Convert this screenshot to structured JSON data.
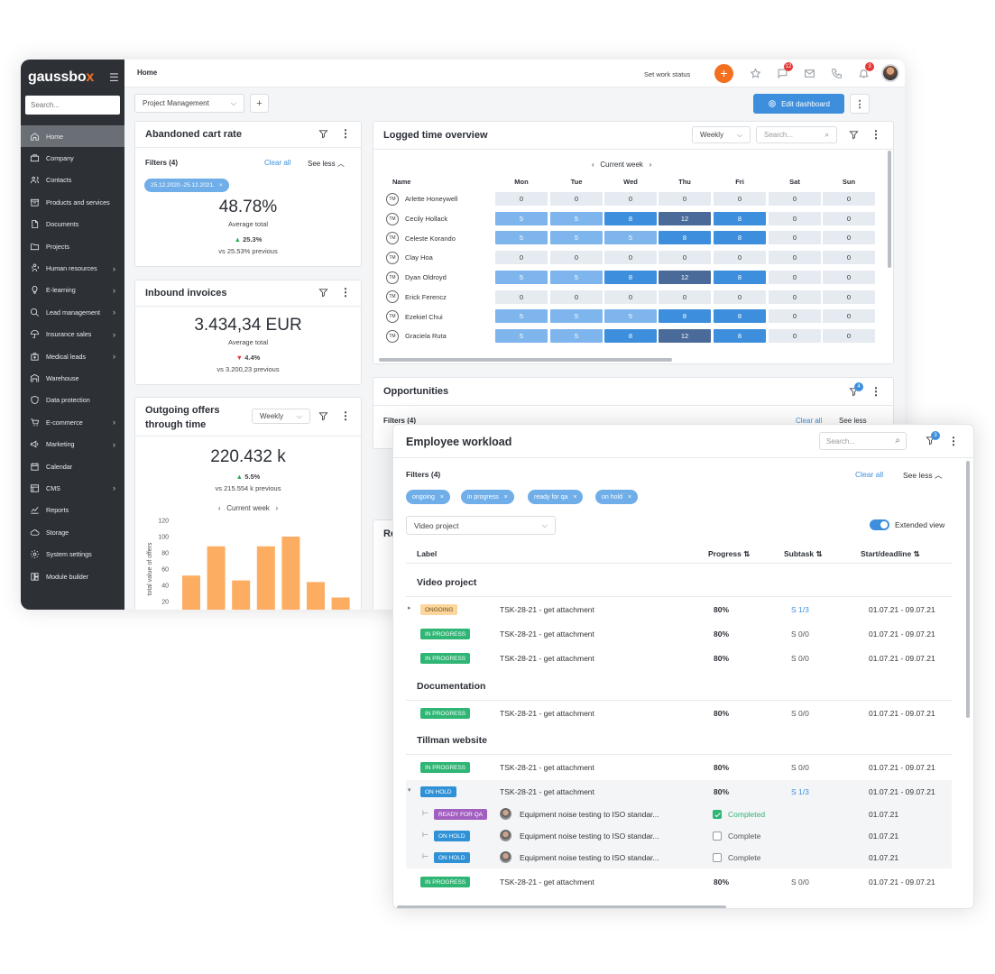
{
  "sidebar": {
    "logo_main": "gaussbo",
    "logo_accent": "x",
    "search_placeholder": "Search...",
    "items": [
      {
        "label": "Home",
        "icon": "home-icon",
        "active": true,
        "chevron": false
      },
      {
        "label": "Company",
        "icon": "briefcase-icon",
        "chevron": false
      },
      {
        "label": "Contacts",
        "icon": "contacts-icon",
        "chevron": false
      },
      {
        "label": "Products and services",
        "icon": "box-icon",
        "chevron": false
      },
      {
        "label": "Documents",
        "icon": "document-icon",
        "chevron": false
      },
      {
        "label": "Projects",
        "icon": "folder-icon",
        "chevron": false
      },
      {
        "label": "Human resources",
        "icon": "people-icon",
        "chevron": true
      },
      {
        "label": "E-learning",
        "icon": "bulb-icon",
        "chevron": true
      },
      {
        "label": "Lead management",
        "icon": "search-people-icon",
        "chevron": true
      },
      {
        "label": "Insurance sales",
        "icon": "umbrella-icon",
        "chevron": true
      },
      {
        "label": "Medical leads",
        "icon": "medical-icon",
        "chevron": true
      },
      {
        "label": "Warehouse",
        "icon": "warehouse-icon",
        "chevron": false
      },
      {
        "label": "Data protection",
        "icon": "shield-icon",
        "chevron": false
      },
      {
        "label": "E-commerce",
        "icon": "cart-icon",
        "chevron": true
      },
      {
        "label": "Marketing",
        "icon": "megaphone-icon",
        "chevron": true
      },
      {
        "label": "Calendar",
        "icon": "calendar-icon",
        "chevron": false
      },
      {
        "label": "CMS",
        "icon": "cms-icon",
        "chevron": true
      },
      {
        "label": "Reports",
        "icon": "chart-line-icon",
        "chevron": false
      },
      {
        "label": "Storage",
        "icon": "cloud-icon",
        "chevron": false
      },
      {
        "label": "System settings",
        "icon": "gear-icon",
        "chevron": false
      },
      {
        "label": "Module builder",
        "icon": "module-icon",
        "chevron": false
      }
    ]
  },
  "topbar": {
    "breadcrumb": "Home",
    "work_status": "Set work status",
    "plus": "+",
    "chat_badge": "12",
    "bell_badge": "3"
  },
  "toolbar": {
    "dashboard_select": "Project Management",
    "add": "+",
    "edit_dashboard": "Edit dashboard"
  },
  "abandoned": {
    "title": "Abandoned cart rate",
    "filters": "Filters (4)",
    "clear_all": "Clear all",
    "see_less": "See less",
    "chip": "25.12.2020.-25.12.2021.",
    "value": "48.78%",
    "caption": "Average total",
    "change": "25.3%",
    "previous": "vs 25.53% previous"
  },
  "inbound": {
    "title": "Inbound invoices",
    "value": "3.434,34 EUR",
    "caption": "Average total",
    "change": "4.4%",
    "previous": "vs 3.200,23 previous"
  },
  "outgoing": {
    "title_line1": "Outgoing offers",
    "title_line2": "through time",
    "period": "Weekly",
    "value": "220.432 k",
    "change": "5.5%",
    "previous": "vs 215.554 k previous",
    "week": "Current week"
  },
  "chart_data": {
    "type": "bar",
    "title": "",
    "ylabel": "total value of offers",
    "ylim": [
      20,
      120
    ],
    "yticks": [
      "120",
      "100",
      "80",
      "60",
      "40",
      "20"
    ],
    "values": [
      52,
      88,
      46,
      88,
      100,
      44,
      25
    ],
    "color": "#fdad62"
  },
  "logged": {
    "title": "Logged time overview",
    "period": "Weekly",
    "search_placeholder": "Search...",
    "week": "Current week",
    "name_header": "Name",
    "days": [
      "Mon",
      "Tue",
      "Wed",
      "Thu",
      "Fri",
      "Sat",
      "Sun"
    ],
    "rows": [
      {
        "initials": "TM",
        "name": "Arlette Honeywell",
        "values": [
          "0",
          "0",
          "0",
          "0",
          "0",
          "0",
          "0"
        ]
      },
      {
        "initials": "TM",
        "name": "Cecily Hollack",
        "values": [
          "5",
          "5",
          "8",
          "12",
          "8",
          "0",
          "0"
        ]
      },
      {
        "initials": "TM",
        "name": "Celeste Korando",
        "values": [
          "5",
          "5",
          "5",
          "8",
          "8",
          "0",
          "0"
        ]
      },
      {
        "initials": "TM",
        "name": "Clay Hoa",
        "values": [
          "0",
          "0",
          "0",
          "0",
          "0",
          "0",
          "0"
        ]
      },
      {
        "initials": "TM",
        "name": "Dyan Oldroyd",
        "values": [
          "5",
          "5",
          "8",
          "12",
          "8",
          "0",
          "0"
        ]
      },
      {
        "initials": "TM",
        "name": "Erick Ferencz",
        "values": [
          "0",
          "0",
          "0",
          "0",
          "0",
          "0",
          "0"
        ]
      },
      {
        "initials": "TM",
        "name": "Ezekiel Chui",
        "values": [
          "5",
          "5",
          "5",
          "8",
          "8",
          "0",
          "0"
        ]
      },
      {
        "initials": "TM",
        "name": "Graciela Ruta",
        "values": [
          "5",
          "5",
          "8",
          "12",
          "8",
          "0",
          "0"
        ]
      }
    ]
  },
  "opportunities": {
    "title": "Opportunities",
    "filter_badge": "4",
    "filters": "Filters (4)",
    "clear_all": "Clear all",
    "see_less": "See less"
  },
  "hidden_card": {
    "title": "Re"
  },
  "workload": {
    "title": "Employee workload",
    "search_placeholder": "Search...",
    "filter_badge": "3",
    "filters": "Filters (4)",
    "clear_all": "Clear all",
    "see_less": "See less",
    "chips": [
      "ongoing",
      "in progress",
      "ready for qa",
      "on hold"
    ],
    "project_select": "Video project",
    "extended_view": "Extended view",
    "columns": {
      "label": "Label",
      "progress": "Progress",
      "subtask": "Subtask",
      "dates": "Start/deadline"
    },
    "groups": [
      "Video project",
      "Documentation",
      "Tillman website"
    ],
    "rows": [
      {
        "status": "ONGOING",
        "task": "TSK-28-21 - get attachment",
        "progress": "80%",
        "subtask": "S 1/3",
        "dates": "01.07.21 - 09.07.21"
      },
      {
        "status": "IN PROGRESS",
        "task": "TSK-28-21 - get attachment",
        "progress": "80%",
        "subtask": "S 0/0",
        "dates": "01.07.21 - 09.07.21"
      },
      {
        "status": "IN PROGRESS",
        "task": "TSK-28-21 - get attachment",
        "progress": "80%",
        "subtask": "S 0/0",
        "dates": "01.07.21 - 09.07.21"
      },
      {
        "status": "IN PROGRESS",
        "task": "TSK-28-21 - get attachment",
        "progress": "80%",
        "subtask": "S 0/0",
        "dates": "01.07.21 - 09.07.21"
      },
      {
        "status": "IN PROGRESS",
        "task": "TSK-28-21 - get attachment",
        "progress": "80%",
        "subtask": "S 0/0",
        "dates": "01.07.21 - 09.07.21"
      },
      {
        "status": "ON HOLD",
        "task": "TSK-28-21 - get attachment",
        "progress": "80%",
        "subtask": "S 1/3",
        "dates": "01.07.21 - 09.07.21"
      },
      {
        "status": "IN PROGRESS",
        "task": "TSK-28-21 - get attachment",
        "progress": "80%",
        "subtask": "S 0/0",
        "dates": "01.07.21 - 09.07.21"
      }
    ],
    "subrows": [
      {
        "status": "READY FOR QA",
        "task": "Equipment noise testing to ISO standar...",
        "check": "Completed",
        "date": "01.07.21"
      },
      {
        "status": "ON HOLD",
        "task": "Equipment noise testing to ISO standar...",
        "check": "Complete",
        "date": "01.07.21"
      },
      {
        "status": "ON HOLD",
        "task": "Equipment noise testing to ISO standar...",
        "check": "Complete",
        "date": "01.07.21"
      }
    ]
  }
}
